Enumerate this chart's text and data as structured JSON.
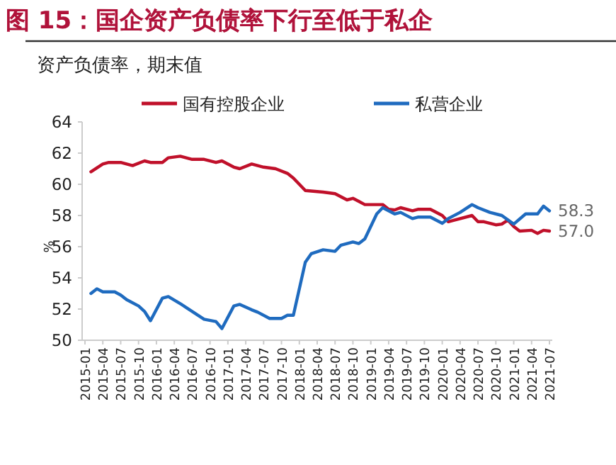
{
  "chart_data": {
    "type": "line",
    "title": "图 15：国企资产负债率下行至低于私企",
    "subtitle": "资产负债率，期末值",
    "ylabel": "%",
    "ylim": [
      50,
      64
    ],
    "yticks": [
      50,
      52,
      54,
      56,
      58,
      60,
      62,
      64
    ],
    "xlim": [
      "2015-01",
      "2021-07"
    ],
    "xticks": [
      "2015-01",
      "2015-04",
      "2015-07",
      "2015-10",
      "2016-01",
      "2016-04",
      "2016-07",
      "2016-10",
      "2017-01",
      "2017-04",
      "2017-07",
      "2017-10",
      "2018-01",
      "2018-04",
      "2018-07",
      "2018-10",
      "2019-01",
      "2019-04",
      "2019-07",
      "2019-10",
      "2020-01",
      "2020-04",
      "2020-07",
      "2020-10",
      "2021-01",
      "2021-04",
      "2021-07"
    ],
    "legend": "top",
    "grid": false,
    "marker": "none",
    "line_style": "solid",
    "series": [
      {
        "name": "国有控股企业",
        "color": "#c0102a",
        "x": [
          "2015-02",
          "2015-04",
          "2015-05",
          "2015-07",
          "2015-09",
          "2015-11",
          "2015-12",
          "2016-02",
          "2016-03",
          "2016-05",
          "2016-07",
          "2016-09",
          "2016-11",
          "2016-12",
          "2017-02",
          "2017-03",
          "2017-05",
          "2017-07",
          "2017-09",
          "2017-11",
          "2017-12",
          "2018-02",
          "2018-05",
          "2018-07",
          "2018-09",
          "2018-10",
          "2018-12",
          "2019-03",
          "2019-04",
          "2019-05",
          "2019-06",
          "2019-08",
          "2019-09",
          "2019-11",
          "2020-01",
          "2020-02",
          "2020-03",
          "2020-06",
          "2020-07",
          "2020-08",
          "2020-10",
          "2020-11",
          "2020-12",
          "2021-01",
          "2021-02",
          "2021-04",
          "2021-05",
          "2021-06",
          "2021-07"
        ],
        "values": [
          60.8,
          61.3,
          61.4,
          61.4,
          61.2,
          61.5,
          61.4,
          61.4,
          61.7,
          61.8,
          61.6,
          61.6,
          61.4,
          61.5,
          61.1,
          61.0,
          61.3,
          61.1,
          61.0,
          60.7,
          60.4,
          59.6,
          59.5,
          59.4,
          59.0,
          59.1,
          58.7,
          58.7,
          58.4,
          58.35,
          58.5,
          58.3,
          58.4,
          58.4,
          58.0,
          57.6,
          57.7,
          58.0,
          57.6,
          57.6,
          57.4,
          57.45,
          57.7,
          57.3,
          57.0,
          57.05,
          56.85,
          57.05,
          57.0
        ]
      },
      {
        "name": "私营企业",
        "color": "#1f6bbf",
        "x": [
          "2015-02",
          "2015-03",
          "2015-04",
          "2015-06",
          "2015-07",
          "2015-08",
          "2015-10",
          "2015-11",
          "2015-12",
          "2016-02",
          "2016-03",
          "2016-05",
          "2016-06",
          "2016-08",
          "2016-09",
          "2016-11",
          "2016-12",
          "2017-02",
          "2017-03",
          "2017-05",
          "2017-06",
          "2017-08",
          "2017-10",
          "2017-11",
          "2017-12",
          "2018-02",
          "2018-03",
          "2018-05",
          "2018-07",
          "2018-08",
          "2018-10",
          "2018-11",
          "2018-12",
          "2019-02",
          "2019-03",
          "2019-05",
          "2019-06",
          "2019-08",
          "2019-09",
          "2019-11",
          "2020-01",
          "2020-02",
          "2020-04",
          "2020-06",
          "2020-07",
          "2020-09",
          "2020-11",
          "2021-01",
          "2021-03",
          "2021-05",
          "2021-06",
          "2021-07"
        ],
        "values": [
          53.0,
          53.3,
          53.1,
          53.1,
          52.9,
          52.6,
          52.2,
          51.85,
          51.25,
          52.7,
          52.8,
          52.35,
          52.1,
          51.6,
          51.35,
          51.2,
          50.75,
          52.2,
          52.3,
          51.95,
          51.8,
          51.4,
          51.4,
          51.6,
          51.6,
          55.0,
          55.55,
          55.8,
          55.7,
          56.1,
          56.3,
          56.2,
          56.5,
          58.1,
          58.5,
          58.1,
          58.2,
          57.8,
          57.9,
          57.9,
          57.5,
          57.8,
          58.2,
          58.7,
          58.5,
          58.2,
          58.0,
          57.45,
          58.1,
          58.1,
          58.6,
          58.3
        ]
      }
    ],
    "annotations": [
      {
        "text": "58.3",
        "x": "2021-07",
        "y": 58.3
      },
      {
        "text": "57.0",
        "x": "2021-07",
        "y": 57.0
      }
    ]
  }
}
